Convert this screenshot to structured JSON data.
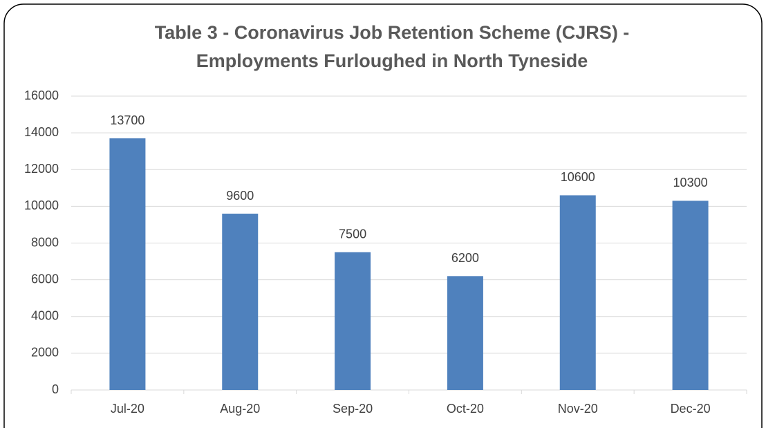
{
  "chart_data": {
    "type": "bar",
    "title": [
      "Table 3 - Coronavirus Job Retention Scheme (CJRS) -",
      "Employments Furloughed in North Tyneside"
    ],
    "categories": [
      "Jul-20",
      "Aug-20",
      "Sep-20",
      "Oct-20",
      "Nov-20",
      "Dec-20"
    ],
    "values": [
      13700,
      9600,
      7500,
      6200,
      10600,
      10300
    ],
    "color": "#4f81bd",
    "ylim": [
      0,
      16000
    ],
    "yticks": [
      0,
      2000,
      4000,
      6000,
      8000,
      10000,
      12000,
      14000,
      16000
    ],
    "grid": true,
    "data_labels": true
  }
}
